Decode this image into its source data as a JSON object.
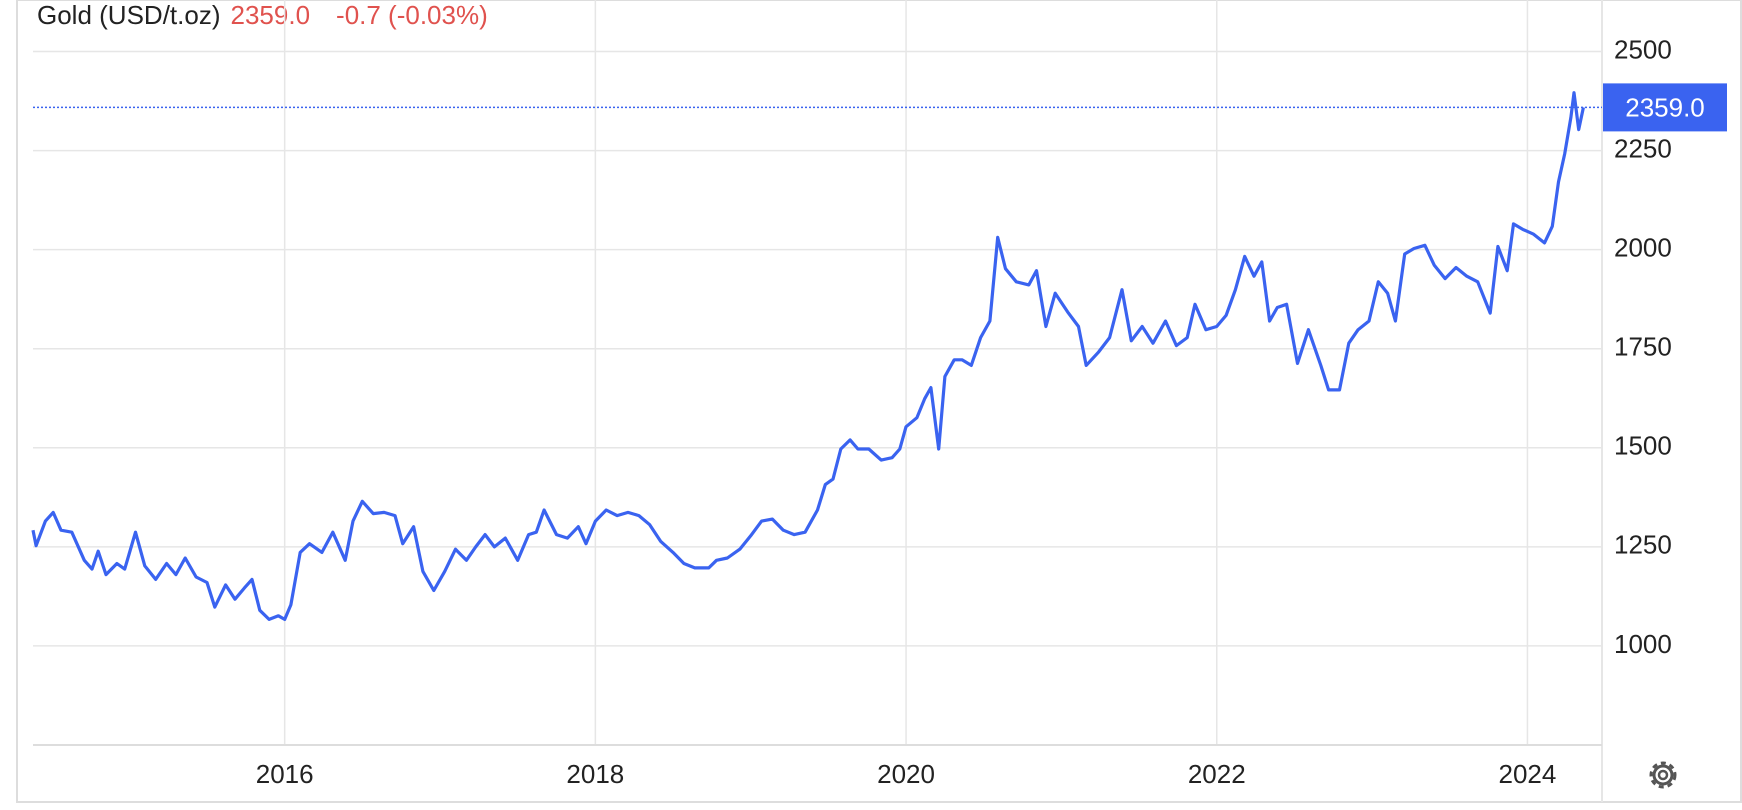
{
  "chart_data": {
    "type": "line",
    "title": "Gold (USD/t.oz)",
    "last": {
      "value": 2359,
      "label": "2359.0"
    },
    "change": "-0.7 (-0.03%)",
    "color": "#3a63f0",
    "grid": true,
    "xlim": [
      2014.38,
      2024.48
    ],
    "xticks": [
      2016,
      2018,
      2020,
      2022,
      2024
    ],
    "ylim": [
      750,
      2630
    ],
    "yticks": [
      1000,
      1250,
      1500,
      1750,
      2000,
      2250,
      2500
    ],
    "series": [
      {
        "name": "Gold",
        "color": "#3a63f0",
        "x": [
          2014.38,
          2014.4,
          2014.46,
          2014.51,
          2014.56,
          2014.63,
          2014.71,
          2014.76,
          2014.8,
          2014.85,
          2014.92,
          2014.97,
          2015.04,
          2015.1,
          2015.17,
          2015.24,
          2015.3,
          2015.36,
          2015.43,
          2015.5,
          2015.55,
          2015.62,
          2015.68,
          2015.74,
          2015.79,
          2015.84,
          2015.9,
          2015.96,
          2016.0,
          2016.04,
          2016.1,
          2016.16,
          2016.24,
          2016.31,
          2016.39,
          2016.44,
          2016.5,
          2016.57,
          2016.64,
          2016.71,
          2016.76,
          2016.83,
          2016.89,
          2016.96,
          2017.03,
          2017.1,
          2017.17,
          2017.23,
          2017.29,
          2017.35,
          2017.42,
          2017.5,
          2017.57,
          2017.62,
          2017.67,
          2017.75,
          2017.82,
          2017.89,
          2017.94,
          2018.0,
          2018.07,
          2018.14,
          2018.21,
          2018.28,
          2018.35,
          2018.42,
          2018.5,
          2018.57,
          2018.64,
          2018.73,
          2018.78,
          2018.85,
          2018.93,
          2019.0,
          2019.07,
          2019.14,
          2019.21,
          2019.28,
          2019.35,
          2019.43,
          2019.48,
          2019.53,
          2019.58,
          2019.64,
          2019.69,
          2019.76,
          2019.84,
          2019.91,
          2019.96,
          2020.0,
          2020.07,
          2020.12,
          2020.16,
          2020.21,
          2020.25,
          2020.31,
          2020.36,
          2020.42,
          2020.48,
          2020.54,
          2020.59,
          2020.64,
          2020.71,
          2020.79,
          2020.84,
          2020.9,
          2020.96,
          2021.04,
          2021.11,
          2021.16,
          2021.24,
          2021.31,
          2021.39,
          2021.45,
          2021.52,
          2021.59,
          2021.67,
          2021.74,
          2021.81,
          2021.86,
          2021.93,
          2022.0,
          2022.06,
          2022.12,
          2022.18,
          2022.24,
          2022.29,
          2022.34,
          2022.39,
          2022.45,
          2022.52,
          2022.59,
          2022.67,
          2022.72,
          2022.79,
          2022.85,
          2022.91,
          2022.98,
          2023.04,
          2023.1,
          2023.15,
          2023.21,
          2023.27,
          2023.34,
          2023.4,
          2023.47,
          2023.54,
          2023.61,
          2023.68,
          2023.76,
          2023.81,
          2023.87,
          2023.91,
          2023.97,
          2024.04,
          2024.11,
          2024.16,
          2024.2,
          2024.24,
          2024.28,
          2024.3,
          2024.33,
          2024.36
        ],
        "values": [
          1292,
          1253,
          1315,
          1337,
          1292,
          1287,
          1216,
          1194,
          1239,
          1180,
          1208,
          1194,
          1287,
          1202,
          1168,
          1208,
          1180,
          1222,
          1174,
          1160,
          1098,
          1154,
          1118,
          1146,
          1168,
          1090,
          1067,
          1076,
          1067,
          1104,
          1236,
          1258,
          1236,
          1287,
          1216,
          1315,
          1365,
          1334,
          1337,
          1329,
          1258,
          1301,
          1188,
          1140,
          1188,
          1244,
          1216,
          1250,
          1281,
          1250,
          1272,
          1216,
          1281,
          1287,
          1343,
          1281,
          1272,
          1301,
          1258,
          1315,
          1343,
          1329,
          1337,
          1329,
          1306,
          1264,
          1236,
          1208,
          1197,
          1197,
          1216,
          1222,
          1244,
          1278,
          1315,
          1320,
          1292,
          1281,
          1287,
          1343,
          1407,
          1421,
          1497,
          1520,
          1497,
          1497,
          1469,
          1475,
          1497,
          1553,
          1576,
          1624,
          1652,
          1497,
          1680,
          1722,
          1722,
          1708,
          1778,
          1820,
          2031,
          1952,
          1919,
          1911,
          1947,
          1806,
          1890,
          1843,
          1806,
          1708,
          1742,
          1778,
          1899,
          1770,
          1806,
          1764,
          1820,
          1758,
          1778,
          1862,
          1798,
          1806,
          1834,
          1899,
          1983,
          1933,
          1969,
          1820,
          1854,
          1862,
          1713,
          1798,
          1708,
          1646,
          1646,
          1764,
          1798,
          1820,
          1919,
          1890,
          1820,
          1989,
          2003,
          2011,
          1961,
          1927,
          1955,
          1933,
          1919,
          1840,
          2008,
          1947,
          2065,
          2051,
          2039,
          2017,
          2059,
          2171,
          2242,
          2334,
          2396,
          2303,
          2359
        ]
      }
    ]
  }
}
